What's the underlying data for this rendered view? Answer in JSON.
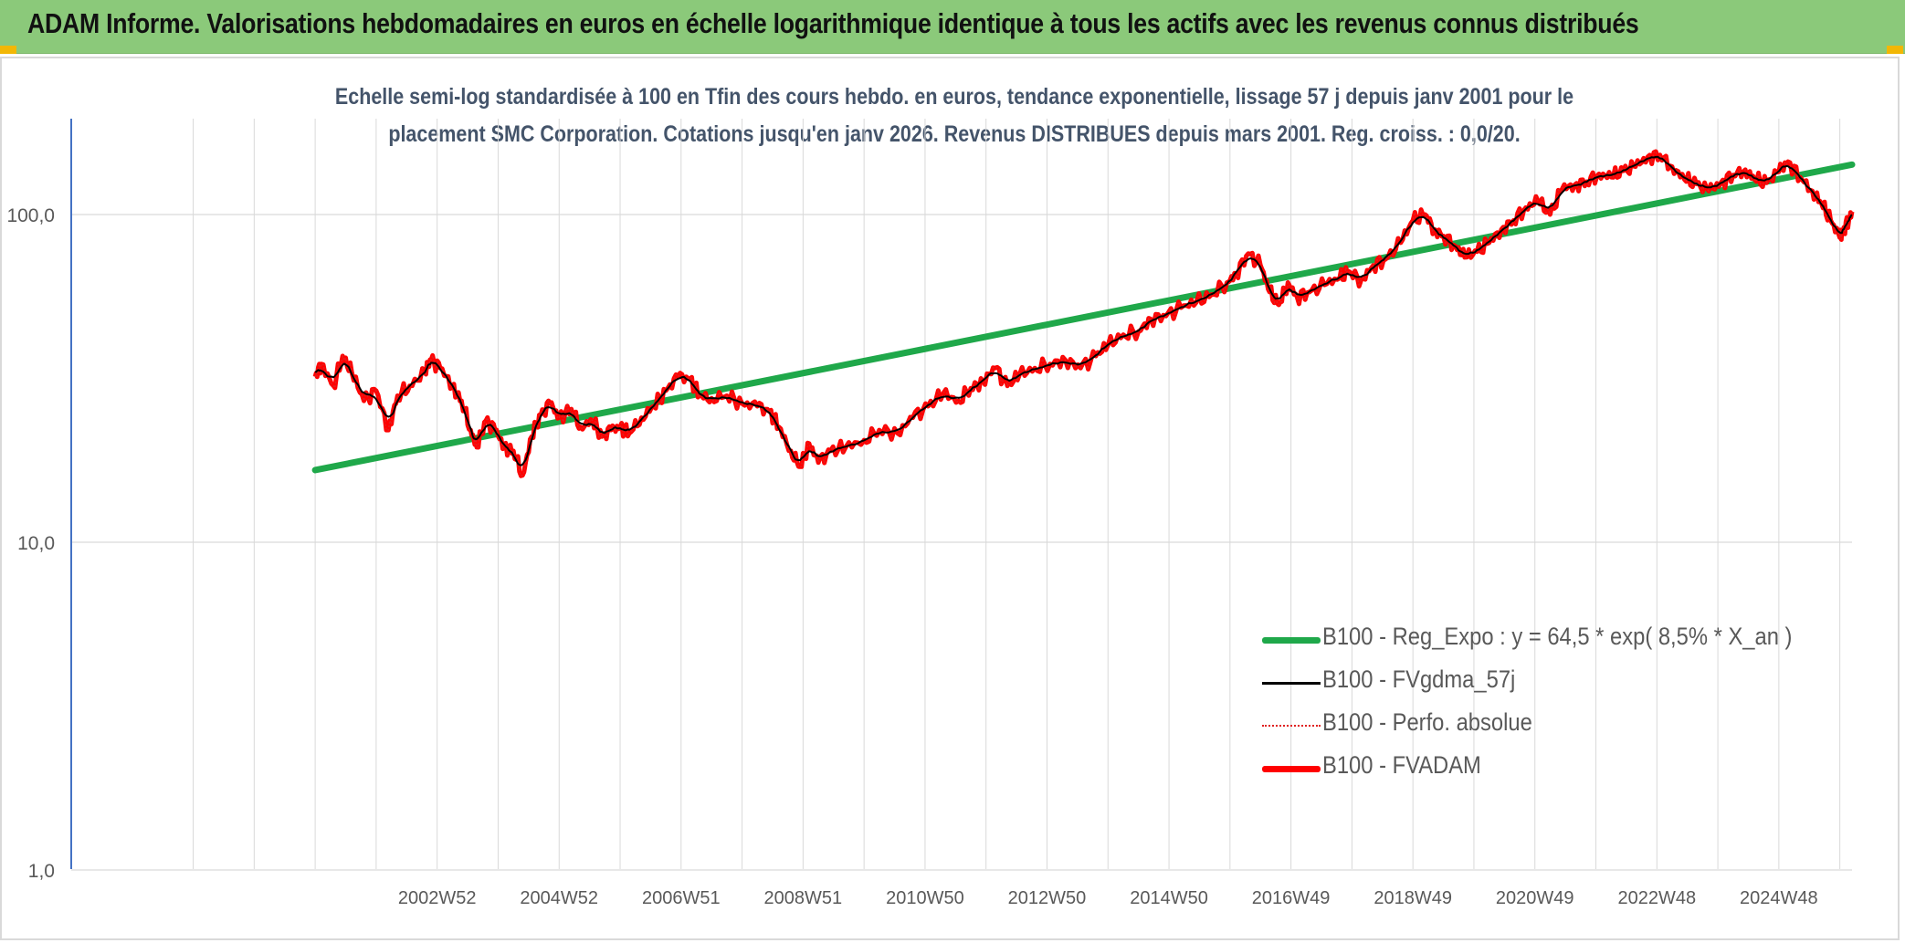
{
  "header": {
    "title": "ADAM Informe. Valorisations hebdomadaires en euros en échelle logarithmique identique à tous les actifs avec les revenus connus distribués"
  },
  "chart": {
    "subtitle_line1": "Echelle semi-log standardisée à 100 en Tfin des cours hebdo. en euros, tendance exponentielle, lissage 57 j depuis janv 2001 pour le",
    "subtitle_line2": "placement SMC Corporation. Cotations jusqu'en janv 2026. Revenus DISTRIBUES depuis mars 2001. Reg. croiss. : 0,0/20."
  },
  "colors": {
    "header_bg": "#8bc97a",
    "trend": "#1fa84a",
    "smooth": "#000000",
    "perf": "#e02020",
    "fvadam": "#ff0000",
    "grid": "#d9d9d9",
    "axis": "#4472c4",
    "corner_marks": "#f2b705"
  },
  "chart_data": {
    "type": "line",
    "yscale": "log",
    "ylim": [
      1,
      200
    ],
    "xlim": [
      1997.0,
      2026.2
    ],
    "y_ticks": [
      {
        "label": "1,0",
        "value": 1
      },
      {
        "label": "10,0",
        "value": 10
      },
      {
        "label": "100,0",
        "value": 100
      }
    ],
    "x_ticks": [
      {
        "label": "2002W52",
        "x": 2003.0
      },
      {
        "label": "2004W52",
        "x": 2005.0
      },
      {
        "label": "2006W51",
        "x": 2007.0
      },
      {
        "label": "2008W51",
        "x": 2009.0
      },
      {
        "label": "2010W50",
        "x": 2011.0
      },
      {
        "label": "2012W50",
        "x": 2013.0
      },
      {
        "label": "2014W50",
        "x": 2015.0
      },
      {
        "label": "2016W49",
        "x": 2017.0
      },
      {
        "label": "2018W49",
        "x": 2019.0
      },
      {
        "label": "2020W49",
        "x": 2021.0
      },
      {
        "label": "2022W48",
        "x": 2023.0
      },
      {
        "label": "2024W48",
        "x": 2025.0
      }
    ],
    "legend_position": "bottom-right",
    "grid": true,
    "series": [
      {
        "name": "B100 - Reg_Expo : y = 64,5 * exp( 8,5% *  X_an )",
        "style": "solid-thick",
        "color_key": "trend",
        "points": [
          [
            2001.0,
            16.6
          ],
          [
            2026.2,
            142.0
          ]
        ]
      },
      {
        "name": "B100 - FVgdma_57j",
        "style": "solid-thin",
        "color_key": "smooth",
        "smooth_of": "B100 - FVADAM"
      },
      {
        "name": "B100 - Perfo. absolue",
        "style": "dotted",
        "color_key": "perf",
        "same_as": "B100 - FVADAM"
      },
      {
        "name": "B100 - FVADAM",
        "style": "solid-thick",
        "color_key": "fvadam",
        "points": [
          [
            2001.0,
            32
          ],
          [
            2001.1,
            35
          ],
          [
            2001.3,
            30
          ],
          [
            2001.45,
            37
          ],
          [
            2001.6,
            33
          ],
          [
            2001.8,
            27
          ],
          [
            2002.0,
            29
          ],
          [
            2002.2,
            22
          ],
          [
            2002.35,
            28
          ],
          [
            2002.55,
            30
          ],
          [
            2002.8,
            33
          ],
          [
            2002.9,
            36
          ],
          [
            2003.05,
            34
          ],
          [
            2003.25,
            30
          ],
          [
            2003.4,
            27
          ],
          [
            2003.55,
            22
          ],
          [
            2003.65,
            19.5
          ],
          [
            2003.8,
            23.5
          ],
          [
            2003.95,
            22
          ],
          [
            2004.1,
            19.5
          ],
          [
            2004.25,
            19
          ],
          [
            2004.4,
            16
          ],
          [
            2004.55,
            21
          ],
          [
            2004.7,
            24.5
          ],
          [
            2004.85,
            26.5
          ],
          [
            2005.0,
            24
          ],
          [
            2005.2,
            25.5
          ],
          [
            2005.35,
            22.5
          ],
          [
            2005.55,
            23.5
          ],
          [
            2005.7,
            21
          ],
          [
            2005.85,
            22
          ],
          [
            2006.0,
            22.5
          ],
          [
            2006.15,
            21.5
          ],
          [
            2006.35,
            24
          ],
          [
            2006.55,
            26
          ],
          [
            2006.75,
            29
          ],
          [
            2006.95,
            32
          ],
          [
            2007.15,
            31.5
          ],
          [
            2007.3,
            28
          ],
          [
            2007.5,
            27.5
          ],
          [
            2007.75,
            28
          ],
          [
            2008.0,
            26.5
          ],
          [
            2008.25,
            26
          ],
          [
            2008.45,
            25
          ],
          [
            2008.6,
            22.5
          ],
          [
            2008.8,
            19
          ],
          [
            2008.95,
            17
          ],
          [
            2009.1,
            20
          ],
          [
            2009.25,
            17.5
          ],
          [
            2009.45,
            19
          ],
          [
            2009.7,
            19.5
          ],
          [
            2010.0,
            20.5
          ],
          [
            2010.25,
            22
          ],
          [
            2010.55,
            21.5
          ],
          [
            2010.8,
            24
          ],
          [
            2011.05,
            26
          ],
          [
            2011.3,
            28.5
          ],
          [
            2011.55,
            27
          ],
          [
            2011.75,
            29.5
          ],
          [
            2011.95,
            31
          ],
          [
            2012.15,
            34
          ],
          [
            2012.35,
            30
          ],
          [
            2012.55,
            32.5
          ],
          [
            2012.8,
            34
          ],
          [
            2013.05,
            35
          ],
          [
            2013.3,
            36
          ],
          [
            2013.55,
            34
          ],
          [
            2013.8,
            37
          ],
          [
            2014.0,
            40
          ],
          [
            2014.25,
            43
          ],
          [
            2014.5,
            44
          ],
          [
            2014.7,
            48
          ],
          [
            2014.95,
            49
          ],
          [
            2015.2,
            52
          ],
          [
            2015.45,
            54
          ],
          [
            2015.7,
            57
          ],
          [
            2015.95,
            62
          ],
          [
            2016.1,
            66
          ],
          [
            2016.3,
            76
          ],
          [
            2016.5,
            70
          ],
          [
            2016.65,
            58
          ],
          [
            2016.8,
            53
          ],
          [
            2016.95,
            62
          ],
          [
            2017.1,
            56
          ],
          [
            2017.3,
            58
          ],
          [
            2017.55,
            61
          ],
          [
            2017.8,
            64
          ],
          [
            2017.95,
            67
          ],
          [
            2018.15,
            63
          ],
          [
            2018.35,
            70
          ],
          [
            2018.55,
            73
          ],
          [
            2018.8,
            82
          ],
          [
            2019.0,
            96
          ],
          [
            2019.2,
            100
          ],
          [
            2019.35,
            90
          ],
          [
            2019.5,
            86
          ],
          [
            2019.7,
            80
          ],
          [
            2019.85,
            74
          ],
          [
            2020.05,
            77
          ],
          [
            2020.25,
            82
          ],
          [
            2020.45,
            90
          ],
          [
            2020.65,
            96
          ],
          [
            2020.85,
            105
          ],
          [
            2021.05,
            110
          ],
          [
            2021.25,
            100
          ],
          [
            2021.45,
            120
          ],
          [
            2021.65,
            123
          ],
          [
            2021.85,
            126
          ],
          [
            2022.05,
            133
          ],
          [
            2022.25,
            130
          ],
          [
            2022.45,
            136
          ],
          [
            2022.65,
            140
          ],
          [
            2022.85,
            150
          ],
          [
            2023.05,
            152
          ],
          [
            2023.25,
            140
          ],
          [
            2023.45,
            128
          ],
          [
            2023.65,
            124
          ],
          [
            2023.85,
            118
          ],
          [
            2024.05,
            125
          ],
          [
            2024.25,
            132
          ],
          [
            2024.45,
            137
          ],
          [
            2024.6,
            128
          ],
          [
            2024.8,
            125
          ],
          [
            2025.0,
            135
          ],
          [
            2025.15,
            145
          ],
          [
            2025.35,
            130
          ],
          [
            2025.55,
            118
          ],
          [
            2025.7,
            108
          ],
          [
            2025.85,
            96
          ],
          [
            2026.0,
            85
          ],
          [
            2026.05,
            89
          ],
          [
            2026.15,
            97
          ],
          [
            2026.2,
            102
          ]
        ]
      }
    ]
  }
}
